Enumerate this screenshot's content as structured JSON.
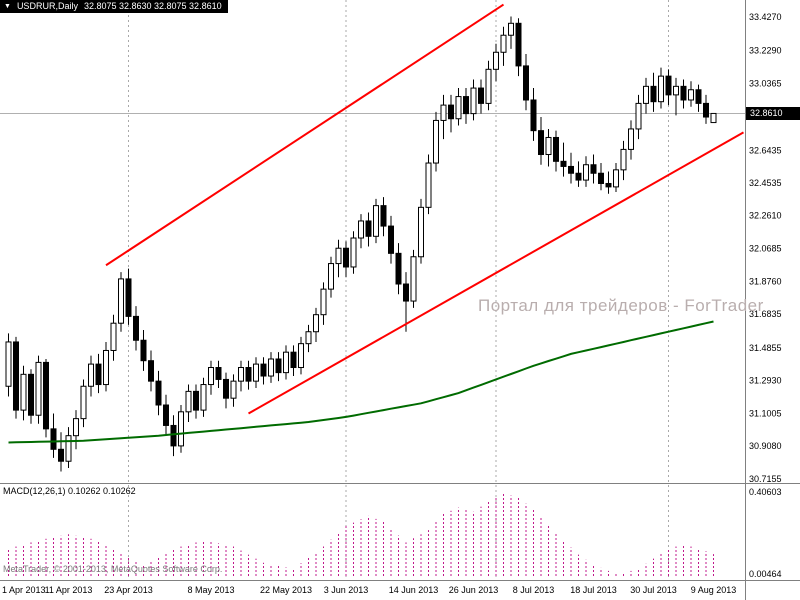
{
  "window": {
    "dropdown_icon": "▼",
    "title": "USDRUR,Daily",
    "quote": "32.8075 32.8630 32.8075 32.8610"
  },
  "watermark": {
    "text": "Портал для трейдеров - ForTrader"
  },
  "price_badge": {
    "value": "32.8610"
  },
  "macd_panel": {
    "label": "MACD(12,26,1) 0.10262 0.10262",
    "axis_labels": [
      "0.40603",
      "0.00464"
    ]
  },
  "footer": {
    "copyright": "MetaTrader, © 2001-2013, MetaQuotes Software Corp."
  },
  "price_axis": {
    "labels": [
      "33.4270",
      "33.2290",
      "33.0365",
      "32.6435",
      "32.4535",
      "32.2610",
      "32.0685",
      "31.8760",
      "31.6835",
      "31.4855",
      "31.2930",
      "31.1005",
      "30.9080",
      "30.7155"
    ]
  },
  "date_axis": {
    "labels": [
      {
        "label": "1 Apr 2013",
        "day": 0
      },
      {
        "label": "11 Apr 2013",
        "day": 8
      },
      {
        "label": "23 Apr 2013",
        "day": 16
      },
      {
        "label": "8 May 2013",
        "day": 27
      },
      {
        "label": "22 May 2013",
        "day": 37
      },
      {
        "label": "3 Jun 2013",
        "day": 45
      },
      {
        "label": "14 Jun 2013",
        "day": 54
      },
      {
        "label": "26 Jun 2013",
        "day": 62
      },
      {
        "label": "8 Jul 2013",
        "day": 70
      },
      {
        "label": "18 Jul 2013",
        "day": 78
      },
      {
        "label": "30 Jul 2013",
        "day": 86
      },
      {
        "label": "9 Aug 2013",
        "day": 94
      }
    ]
  },
  "chart_data": {
    "type": "candlestick",
    "symbol": "USDRUR",
    "timeframe": "Daily",
    "quote": {
      "open": 32.8075,
      "high": 32.863,
      "low": 32.8075,
      "close": 32.861
    },
    "current_price": 32.861,
    "price_axis_range": [
      30.68,
      33.53
    ],
    "indicator": "MACD(12,26,1)",
    "macd_value": 0.10262,
    "macd_signal": 0.10262,
    "macd_axis_range": [
      0,
      0.42
    ],
    "grid_days": [
      16,
      45,
      65,
      88
    ],
    "ohlc": [
      [
        31.26,
        31.57,
        31.2,
        31.52
      ],
      [
        31.52,
        31.55,
        31.07,
        31.12
      ],
      [
        31.12,
        31.38,
        31.06,
        31.33
      ],
      [
        31.33,
        31.36,
        31.04,
        31.09
      ],
      [
        31.09,
        31.44,
        31.04,
        31.4
      ],
      [
        31.4,
        31.42,
        30.96,
        31.01
      ],
      [
        31.01,
        31.1,
        30.84,
        30.89
      ],
      [
        30.89,
        30.99,
        30.76,
        30.82
      ],
      [
        30.82,
        31.02,
        30.78,
        30.97
      ],
      [
        30.97,
        31.12,
        30.89,
        31.07
      ],
      [
        31.07,
        31.3,
        31.02,
        31.26
      ],
      [
        31.26,
        31.44,
        31.2,
        31.39
      ],
      [
        31.39,
        31.45,
        31.22,
        31.27
      ],
      [
        31.27,
        31.52,
        31.23,
        31.47
      ],
      [
        31.47,
        31.68,
        31.41,
        31.63
      ],
      [
        31.63,
        31.93,
        31.58,
        31.89
      ],
      [
        31.89,
        31.95,
        31.62,
        31.67
      ],
      [
        31.67,
        31.73,
        31.47,
        31.53
      ],
      [
        31.53,
        31.59,
        31.35,
        31.41
      ],
      [
        31.41,
        31.47,
        31.23,
        31.29
      ],
      [
        31.29,
        31.35,
        31.09,
        31.15
      ],
      [
        31.15,
        31.21,
        30.97,
        31.03
      ],
      [
        31.03,
        31.09,
        30.85,
        30.91
      ],
      [
        30.91,
        31.15,
        30.87,
        31.11
      ],
      [
        31.11,
        31.27,
        31.05,
        31.23
      ],
      [
        31.23,
        31.27,
        31.07,
        31.12
      ],
      [
        31.12,
        31.31,
        31.08,
        31.27
      ],
      [
        31.27,
        31.41,
        31.21,
        31.37
      ],
      [
        31.37,
        31.41,
        31.25,
        31.3
      ],
      [
        31.3,
        31.34,
        31.13,
        31.19
      ],
      [
        31.19,
        31.33,
        31.14,
        31.29
      ],
      [
        31.29,
        31.41,
        31.23,
        31.37
      ],
      [
        31.37,
        31.41,
        31.24,
        31.29
      ],
      [
        31.29,
        31.43,
        31.25,
        31.39
      ],
      [
        31.39,
        31.43,
        31.27,
        31.32
      ],
      [
        31.32,
        31.46,
        31.28,
        31.42
      ],
      [
        31.42,
        31.46,
        31.29,
        31.34
      ],
      [
        31.34,
        31.5,
        31.3,
        31.46
      ],
      [
        31.46,
        31.5,
        31.32,
        31.37
      ],
      [
        31.37,
        31.55,
        31.33,
        31.51
      ],
      [
        31.51,
        31.62,
        31.46,
        31.58
      ],
      [
        31.58,
        31.72,
        31.52,
        31.68
      ],
      [
        31.68,
        31.87,
        31.62,
        31.83
      ],
      [
        31.83,
        32.02,
        31.78,
        31.98
      ],
      [
        31.98,
        32.12,
        31.9,
        32.07
      ],
      [
        32.07,
        32.11,
        31.9,
        31.96
      ],
      [
        31.96,
        32.17,
        31.92,
        32.13
      ],
      [
        32.13,
        32.27,
        32.07,
        32.23
      ],
      [
        32.23,
        32.28,
        32.08,
        32.14
      ],
      [
        32.14,
        32.36,
        32.1,
        32.32
      ],
      [
        32.32,
        32.37,
        32.14,
        32.2
      ],
      [
        32.2,
        32.26,
        31.98,
        32.04
      ],
      [
        32.04,
        32.1,
        31.8,
        31.86
      ],
      [
        31.86,
        31.93,
        31.58,
        31.76
      ],
      [
        31.76,
        32.06,
        31.72,
        32.02
      ],
      [
        32.02,
        32.36,
        31.98,
        32.31
      ],
      [
        32.31,
        32.62,
        32.27,
        32.57
      ],
      [
        32.57,
        32.87,
        32.52,
        32.82
      ],
      [
        32.82,
        32.97,
        32.71,
        32.91
      ],
      [
        32.91,
        32.97,
        32.75,
        32.83
      ],
      [
        32.83,
        33.01,
        32.79,
        32.96
      ],
      [
        32.96,
        33.01,
        32.8,
        32.86
      ],
      [
        32.86,
        33.06,
        32.82,
        33.01
      ],
      [
        33.01,
        33.06,
        32.86,
        32.92
      ],
      [
        32.92,
        33.17,
        32.88,
        33.12
      ],
      [
        33.12,
        33.27,
        33.05,
        33.22
      ],
      [
        33.22,
        33.37,
        33.14,
        33.32
      ],
      [
        33.32,
        33.43,
        33.24,
        33.39
      ],
      [
        33.39,
        33.42,
        33.08,
        33.14
      ],
      [
        33.14,
        33.21,
        32.88,
        32.94
      ],
      [
        32.94,
        33.01,
        32.7,
        32.76
      ],
      [
        32.76,
        32.84,
        32.56,
        32.62
      ],
      [
        32.62,
        32.77,
        32.55,
        32.72
      ],
      [
        32.72,
        32.76,
        32.52,
        32.58
      ],
      [
        32.58,
        32.69,
        32.49,
        32.55
      ],
      [
        32.55,
        32.63,
        32.45,
        32.51
      ],
      [
        32.51,
        32.58,
        32.43,
        32.47
      ],
      [
        32.47,
        32.61,
        32.43,
        32.56
      ],
      [
        32.56,
        32.62,
        32.45,
        32.51
      ],
      [
        32.51,
        32.57,
        32.41,
        32.45
      ],
      [
        32.45,
        32.52,
        32.39,
        32.43
      ],
      [
        32.43,
        32.57,
        32.4,
        32.53
      ],
      [
        32.53,
        32.7,
        32.47,
        32.65
      ],
      [
        32.65,
        32.82,
        32.59,
        32.77
      ],
      [
        32.77,
        32.97,
        32.71,
        32.92
      ],
      [
        32.92,
        33.07,
        32.86,
        33.02
      ],
      [
        33.02,
        33.1,
        32.87,
        32.93
      ],
      [
        32.93,
        33.13,
        32.89,
        33.08
      ],
      [
        33.08,
        33.12,
        32.91,
        32.97
      ],
      [
        32.97,
        33.07,
        32.85,
        33.02
      ],
      [
        33.02,
        33.06,
        32.89,
        32.94
      ],
      [
        32.94,
        33.05,
        32.9,
        33.0
      ],
      [
        33.0,
        33.03,
        32.87,
        32.92
      ],
      [
        32.92,
        32.97,
        32.8,
        32.84
      ],
      [
        32.8075,
        32.863,
        32.8075,
        32.861
      ]
    ],
    "ma_anchors": [
      [
        0,
        30.93
      ],
      [
        10,
        30.94
      ],
      [
        20,
        30.97
      ],
      [
        30,
        31.01
      ],
      [
        40,
        31.05
      ],
      [
        45,
        31.08
      ],
      [
        50,
        31.12
      ],
      [
        55,
        31.16
      ],
      [
        60,
        31.22
      ],
      [
        65,
        31.3
      ],
      [
        70,
        31.38
      ],
      [
        75,
        31.45
      ],
      [
        80,
        31.5
      ],
      [
        85,
        31.55
      ],
      [
        90,
        31.6
      ],
      [
        94,
        31.64
      ]
    ],
    "trend_lines": [
      {
        "from": [
          13,
          31.97
        ],
        "to": [
          66,
          33.5
        ],
        "color": "#ff0000"
      },
      {
        "from": [
          32,
          31.1
        ],
        "to": [
          98,
          32.75
        ],
        "color": "#ff0000"
      }
    ],
    "macd_anchors": [
      [
        0,
        0.13
      ],
      [
        4,
        0.17
      ],
      [
        8,
        0.2
      ],
      [
        12,
        0.17
      ],
      [
        16,
        0.09
      ],
      [
        18,
        0.05
      ],
      [
        22,
        0.13
      ],
      [
        26,
        0.17
      ],
      [
        30,
        0.14
      ],
      [
        34,
        0.06
      ],
      [
        38,
        0.03
      ],
      [
        42,
        0.14
      ],
      [
        45,
        0.24
      ],
      [
        48,
        0.29
      ],
      [
        50,
        0.26
      ],
      [
        53,
        0.16
      ],
      [
        56,
        0.22
      ],
      [
        58,
        0.3
      ],
      [
        60,
        0.33
      ],
      [
        62,
        0.31
      ],
      [
        64,
        0.36
      ],
      [
        66,
        0.4
      ],
      [
        68,
        0.38
      ],
      [
        70,
        0.32
      ],
      [
        72,
        0.24
      ],
      [
        74,
        0.17
      ],
      [
        76,
        0.1
      ],
      [
        78,
        0.05
      ],
      [
        80,
        0.02
      ],
      [
        82,
        0.01
      ],
      [
        84,
        0.03
      ],
      [
        86,
        0.08
      ],
      [
        88,
        0.13
      ],
      [
        90,
        0.15
      ],
      [
        92,
        0.13
      ],
      [
        94,
        0.10262
      ]
    ]
  },
  "colors": {
    "background": "#ffffff",
    "bull_candle": "#ffffff",
    "bear_candle": "#000000",
    "candle_outline": "#000000",
    "moving_average": "#006b00",
    "trend_line": "#ff0000",
    "macd_histogram": "#c0188c",
    "grid": "#a9a9a9",
    "price_line": "#b0b0b0",
    "separator": "#808080",
    "axis_text": "#000000",
    "badge_background": "#000000",
    "badge_text": "#ffffff",
    "titlebar_background": "#000000",
    "titlebar_text": "#ffffff",
    "watermark_text": "#b9aeae"
  }
}
